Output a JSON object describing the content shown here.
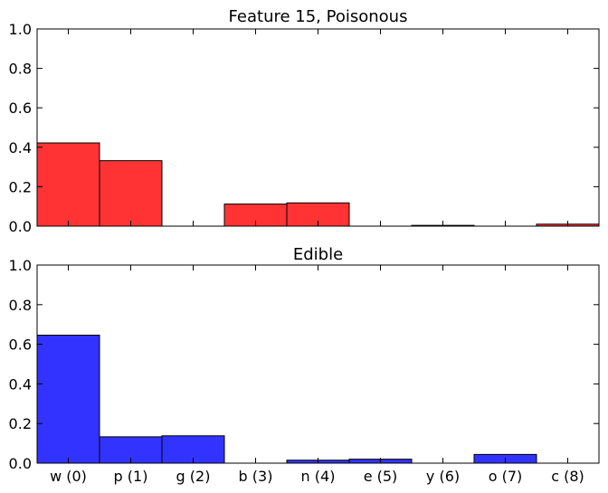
{
  "chart_data": [
    {
      "type": "bar",
      "title": "Feature 15, Poisonous",
      "categories": [
        "w (0)",
        "p (1)",
        "g (2)",
        "b (3)",
        "n (4)",
        "e (5)",
        "y (6)",
        "o (7)",
        "c (8)"
      ],
      "values": [
        0.422,
        0.332,
        0.0,
        0.112,
        0.118,
        0.0,
        0.004,
        0.0,
        0.01
      ],
      "ylim": [
        0,
        1.0
      ],
      "yticks": [
        "0.0",
        "0.2",
        "0.4",
        "0.6",
        "0.8",
        "1.0"
      ],
      "bar_color": "#ff3333",
      "show_xticklabels": false
    },
    {
      "type": "bar",
      "title": "Edible",
      "categories": [
        "w (0)",
        "p (1)",
        "g (2)",
        "b (3)",
        "n (4)",
        "e (5)",
        "y (6)",
        "o (7)",
        "c (8)"
      ],
      "values": [
        0.646,
        0.133,
        0.138,
        0.0,
        0.015,
        0.02,
        0.0,
        0.044,
        0.0
      ],
      "ylim": [
        0,
        1.0
      ],
      "yticks": [
        "0.0",
        "0.2",
        "0.4",
        "0.6",
        "0.8",
        "1.0"
      ],
      "bar_color": "#3333ff",
      "show_xticklabels": true
    }
  ]
}
